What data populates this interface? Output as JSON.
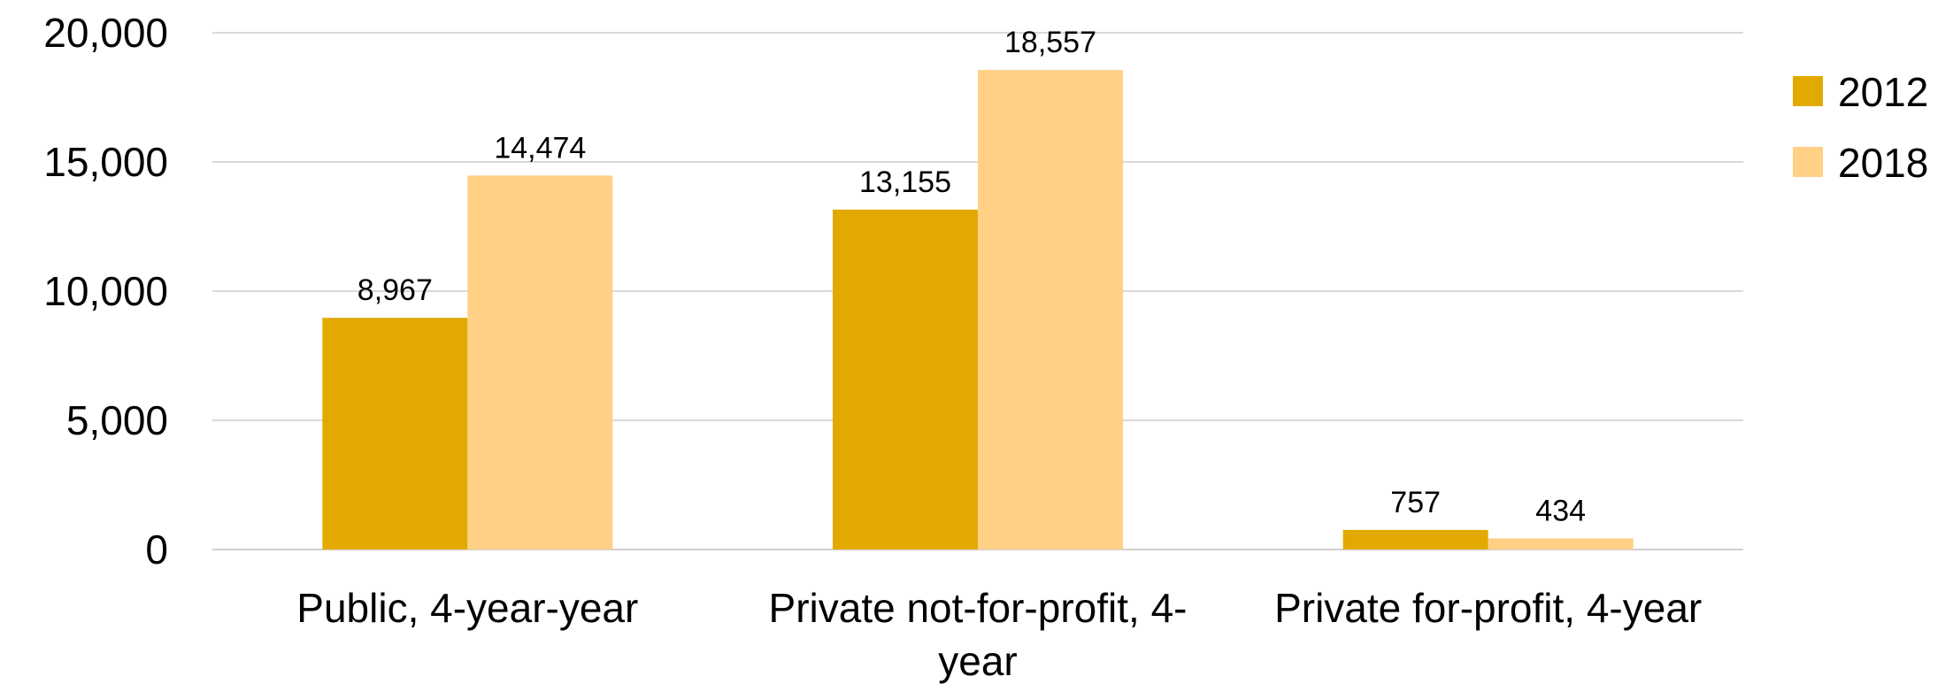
{
  "chart_data": {
    "type": "bar",
    "title": "",
    "xlabel": "",
    "ylabel": "",
    "categories": [
      "Public, 4-year-year",
      "Private not-for-profit, 4-year",
      "Private for-profit, 4-year"
    ],
    "category_label_lines": [
      [
        "Public, 4-year-year"
      ],
      [
        "Private not-for-profit, 4-",
        "year"
      ],
      [
        "Private for-profit, 4-year"
      ]
    ],
    "series": [
      {
        "name": "2012",
        "values": [
          8967,
          13155,
          757
        ],
        "labels": [
          "8,967",
          "13,155",
          "757"
        ],
        "color": "#E2AA00"
      },
      {
        "name": "2018",
        "values": [
          14474,
          18557,
          434
        ],
        "labels": [
          "14,474",
          "18,557",
          "434"
        ],
        "color": "#FFD086"
      }
    ],
    "ylim": [
      0,
      20000
    ],
    "yticks": [
      0,
      5000,
      10000,
      15000,
      20000
    ],
    "ytick_labels": [
      "0",
      "5,000",
      "10,000",
      "15,000",
      "20,000"
    ],
    "grid": true,
    "legend_position": "top-right"
  }
}
